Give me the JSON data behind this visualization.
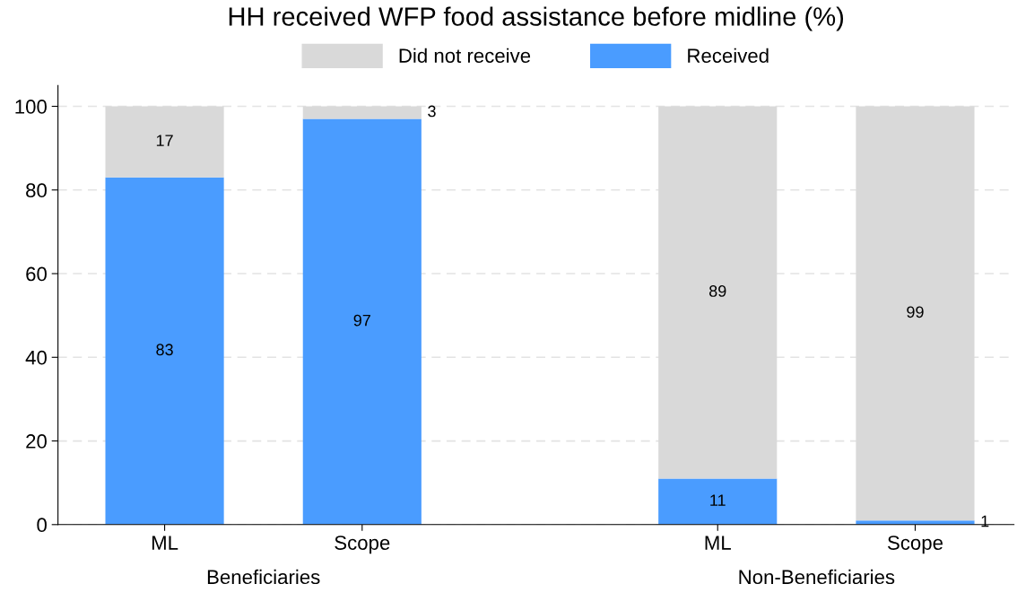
{
  "chart_data": {
    "type": "bar",
    "title": "HH received WFP food assistance before midline (%)",
    "categories": [
      "ML",
      "Scope",
      "ML",
      "Scope"
    ],
    "series": [
      {
        "name": "Received",
        "color": "#4a9cff",
        "values": [
          83,
          97,
          11,
          1
        ]
      },
      {
        "name": "Did not receive",
        "color": "#d9d9d9",
        "values": [
          17,
          3,
          89,
          99
        ]
      }
    ],
    "stacked": true,
    "data_labels": true,
    "ylim": [
      0,
      105
    ],
    "yticks": [
      0,
      20,
      40,
      60,
      80,
      100
    ],
    "grid": "y",
    "legend": "top",
    "annotations": [
      "Beneficiaries",
      "Non-Beneficiaries"
    ]
  }
}
